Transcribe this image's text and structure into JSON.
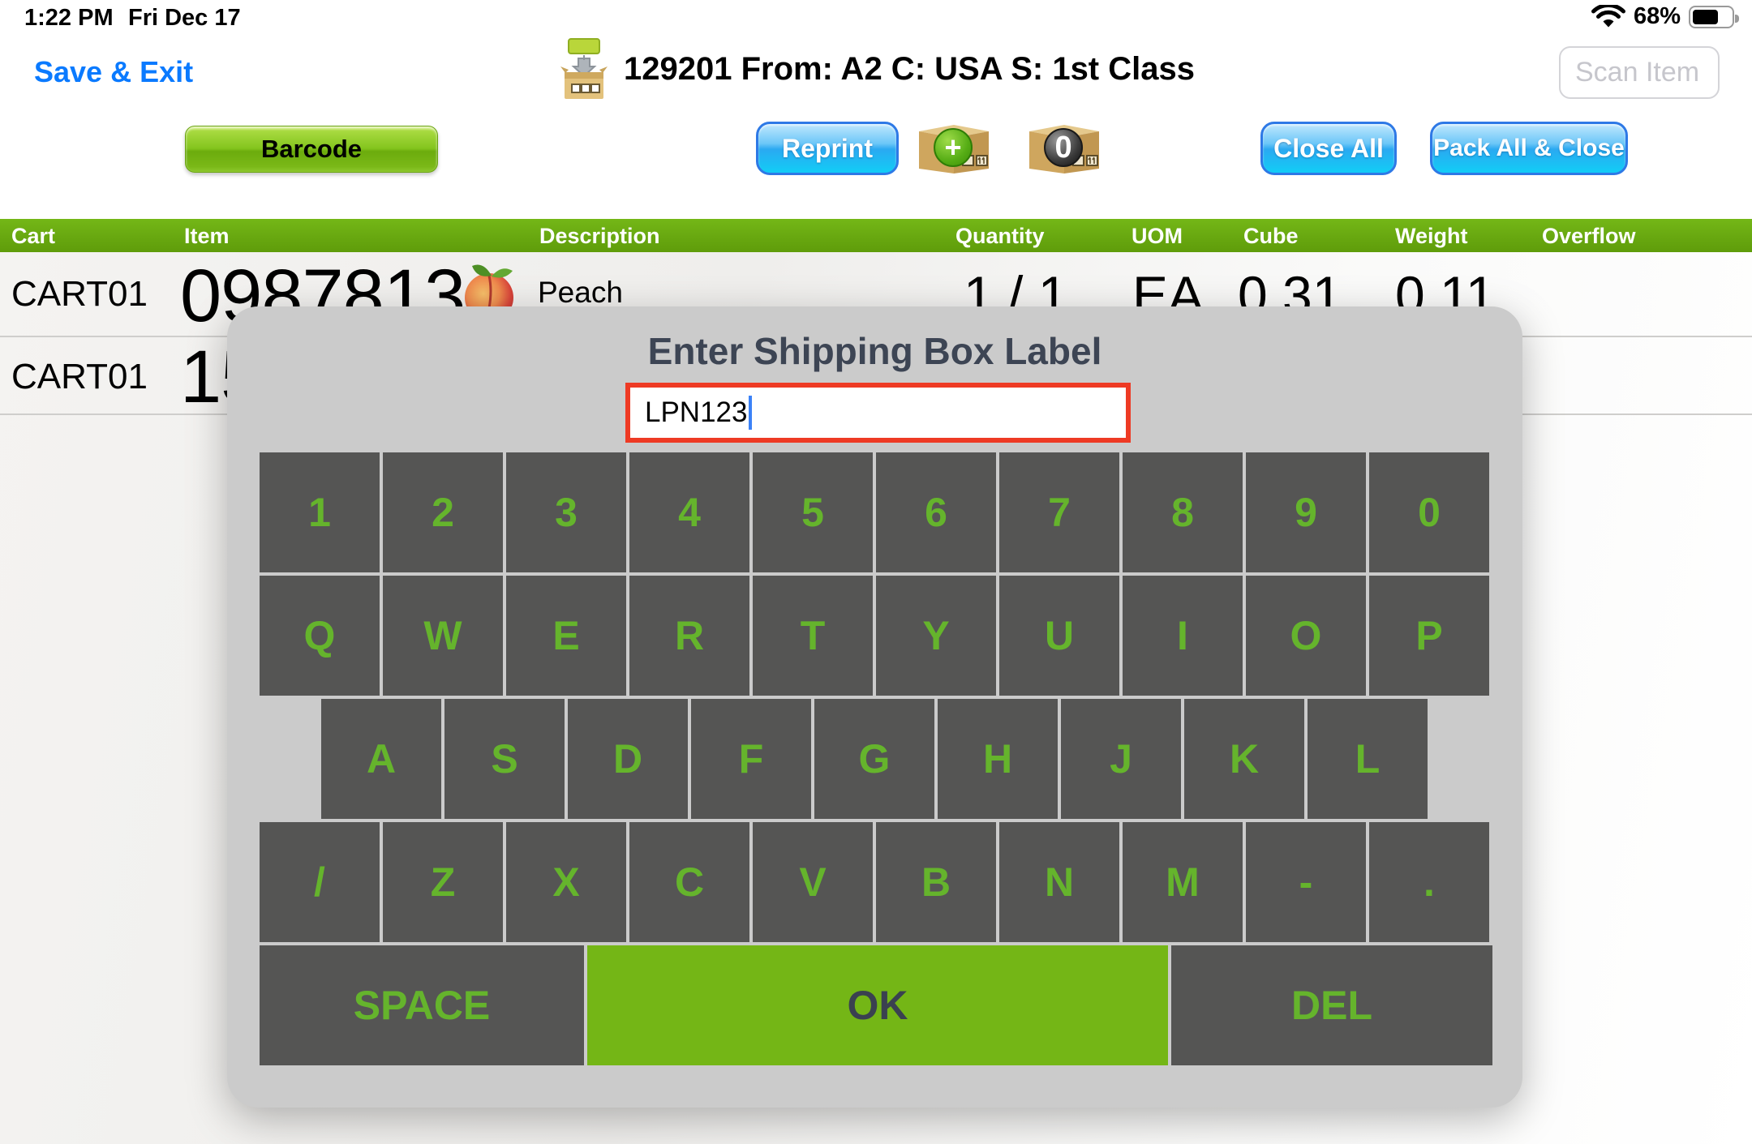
{
  "status_bar": {
    "time": "1:22 PM",
    "date": "Fri Dec 17",
    "battery": "68%",
    "wifi_icon": "wifi-icon",
    "battery_icon": "battery-icon"
  },
  "header": {
    "save_exit_label": "Save & Exit",
    "title": "129201 From: A2 C: USA S: 1st Class",
    "title_icon": "pack-into-box-icon",
    "scan_placeholder": "Scan Item"
  },
  "toolbar": {
    "barcode_label": "Barcode",
    "reprint_label": "Reprint",
    "add_box_badge": "+",
    "zero_box_badge": "0",
    "close_all_label": "Close All",
    "pack_all_close_label": "Pack All & Close"
  },
  "table": {
    "columns": [
      "Cart",
      "Item",
      "Description",
      "Quantity",
      "UOM",
      "Cube",
      "Weight",
      "Overflow"
    ],
    "rows": [
      {
        "cart": "CART01",
        "item": "0987813",
        "description": "Peach",
        "description_icon": "peach-icon",
        "quantity": "1 / 1",
        "uom": "EA",
        "cube": "0.31",
        "weight": "0.11",
        "overflow": ""
      },
      {
        "cart": "CART01",
        "item": "15",
        "description": "",
        "quantity": "",
        "uom": "",
        "cube": "",
        "weight": "",
        "overflow": ""
      }
    ]
  },
  "modal": {
    "title": "Enter Shipping Box Label",
    "input_value": "LPN123",
    "keyboard": {
      "row1": [
        "1",
        "2",
        "3",
        "4",
        "5",
        "6",
        "7",
        "8",
        "9",
        "0"
      ],
      "row2": [
        "Q",
        "W",
        "E",
        "R",
        "T",
        "Y",
        "U",
        "I",
        "O",
        "P"
      ],
      "row3": [
        "A",
        "S",
        "D",
        "F",
        "G",
        "H",
        "J",
        "K",
        "L"
      ],
      "row4": [
        "/",
        "Z",
        "X",
        "C",
        "V",
        "B",
        "N",
        "M",
        "-",
        "."
      ],
      "space_label": "SPACE",
      "ok_label": "OK",
      "del_label": "DEL"
    }
  },
  "colors": {
    "header_green": "#68a810",
    "key_background": "#555554",
    "key_letter_green": "#65b42c",
    "ok_key_green": "#74b616",
    "modal_gray": "#cbcbcb",
    "input_outline_red": "#ee3a24",
    "link_blue": "#0a7aff",
    "button_blue": "#2aa9f1",
    "button_green": "#84c51e"
  }
}
